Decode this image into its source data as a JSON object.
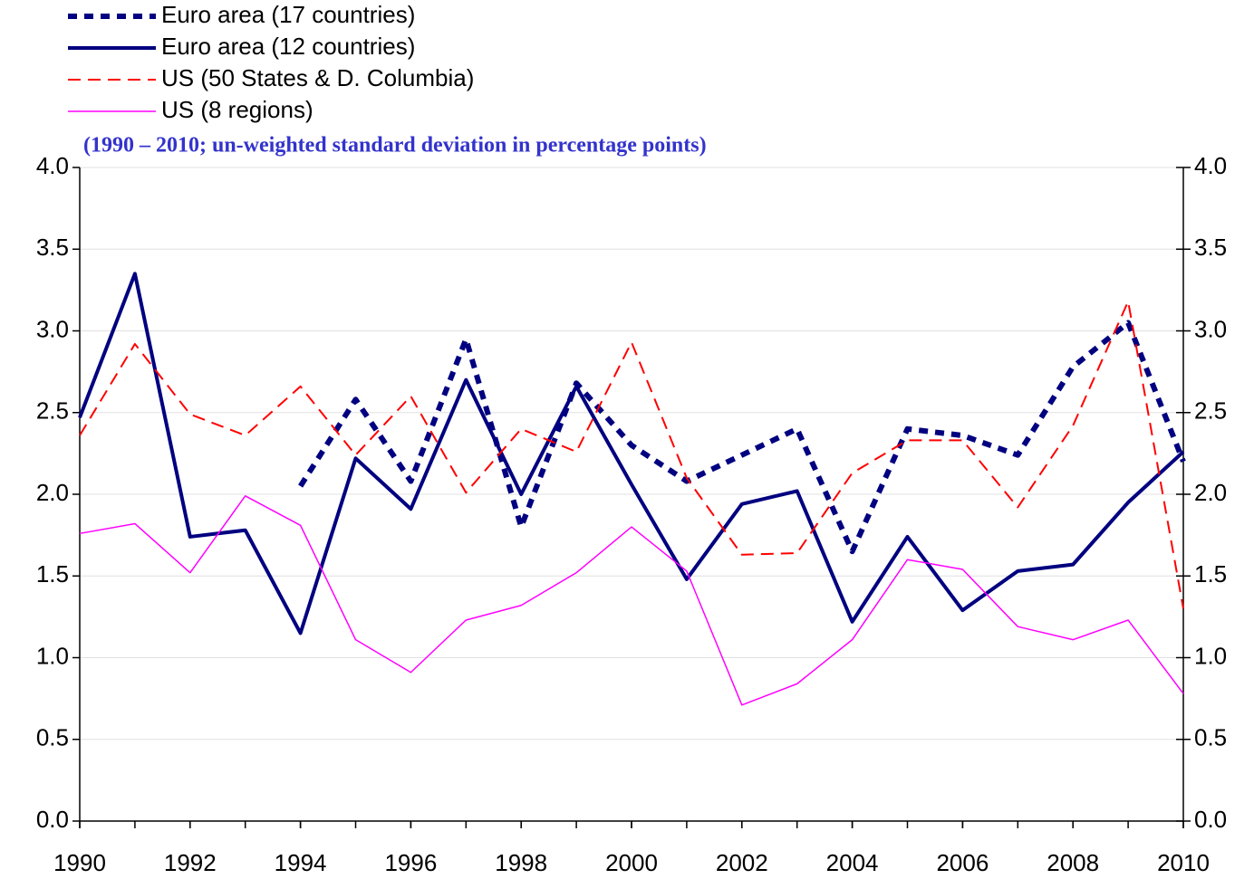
{
  "chart_data": {
    "type": "line",
    "subtitle": "(1990 – 2010; un-weighted standard deviation in percentage points)",
    "x": [
      1990,
      1991,
      1992,
      1993,
      1994,
      1995,
      1996,
      1997,
      1998,
      1999,
      2000,
      2001,
      2002,
      2003,
      2004,
      2005,
      2006,
      2007,
      2008,
      2009,
      2010
    ],
    "xlim": [
      1990,
      2010
    ],
    "xticks": [
      1990,
      1992,
      1994,
      1996,
      1998,
      2000,
      2002,
      2004,
      2006,
      2008,
      2010
    ],
    "ylim": [
      0,
      4
    ],
    "yticks": [
      {
        "value": 0,
        "label": "0.0"
      },
      0.5,
      {
        "value": 1,
        "label": "1.0"
      },
      1.5,
      {
        "value": 2,
        "label": "2.0"
      },
      2.5,
      {
        "value": 3,
        "label": "3.0"
      },
      3.5,
      {
        "value": 4,
        "label": "4.0"
      }
    ],
    "grid": true,
    "series": [
      {
        "name": "Euro area (17 countries)",
        "color": "#000080",
        "style": "dotted",
        "values": [
          null,
          null,
          null,
          null,
          2.05,
          2.58,
          2.08,
          2.95,
          1.8,
          2.68,
          2.3,
          2.08,
          2.24,
          2.4,
          1.65,
          2.4,
          2.36,
          2.24,
          2.78,
          3.05,
          2.2
        ]
      },
      {
        "name": "Euro area (12 countries)",
        "color": "#000080",
        "style": "solid",
        "values": [
          2.47,
          3.35,
          1.74,
          1.78,
          1.15,
          2.22,
          1.91,
          2.7,
          2.0,
          2.66,
          2.06,
          1.48,
          1.94,
          2.02,
          1.22,
          1.74,
          1.29,
          1.53,
          1.57,
          1.95,
          2.26
        ]
      },
      {
        "name": "US (50 States & D. Columbia)",
        "color": "#ff0000",
        "style": "dashed",
        "values": [
          2.36,
          2.92,
          2.49,
          2.36,
          2.66,
          2.24,
          2.6,
          2.01,
          2.4,
          2.26,
          2.93,
          2.1,
          1.63,
          1.64,
          2.13,
          2.33,
          2.33,
          1.92,
          2.42,
          3.18,
          1.3
        ]
      },
      {
        "name": "US (8 regions)",
        "color": "#ff00ff",
        "style": "thin",
        "values": [
          1.76,
          1.82,
          1.52,
          1.99,
          1.81,
          1.11,
          0.91,
          1.23,
          1.32,
          1.52,
          1.8,
          1.53,
          0.71,
          0.84,
          1.11,
          1.6,
          1.54,
          1.19,
          1.11,
          1.23,
          0.78
        ]
      }
    ]
  }
}
